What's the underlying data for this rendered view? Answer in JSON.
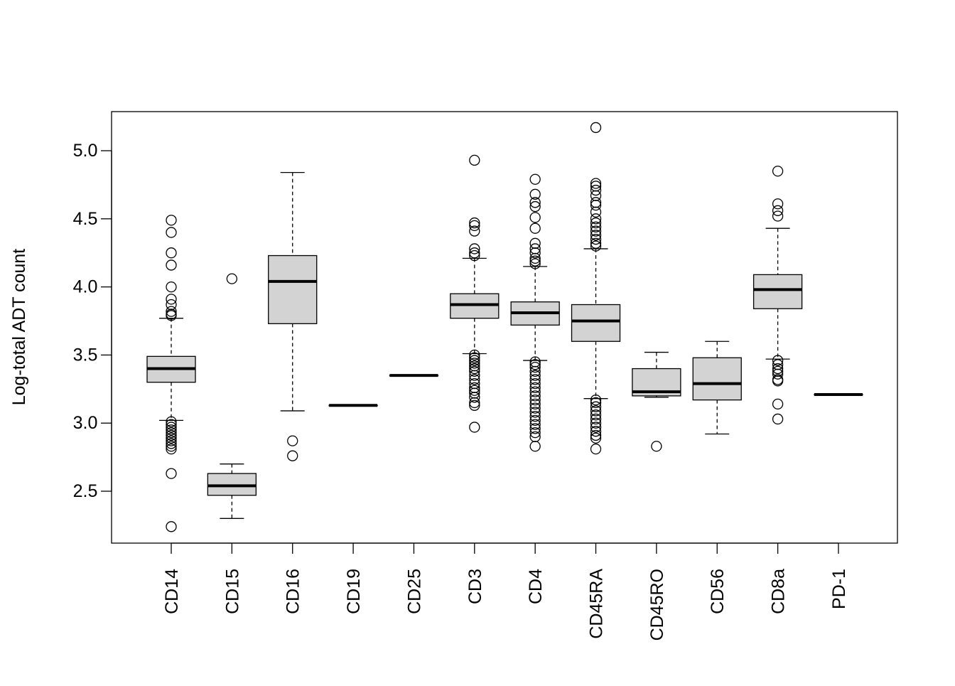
{
  "chart_data": {
    "type": "boxplot",
    "title": "",
    "xlabel": "",
    "ylabel": "Log-total ADT count",
    "ylim": [
      2.12,
      5.29
    ],
    "yticks": [
      "2.5",
      "3.0",
      "3.5",
      "4.0",
      "4.5",
      "5.0"
    ],
    "box_fill": "#d3d3d3",
    "categories": [
      "CD14",
      "CD15",
      "CD16",
      "CD19",
      "CD25",
      "CD3",
      "CD4",
      "CD45RA",
      "CD45RO",
      "CD56",
      "CD8a",
      "PD-1"
    ],
    "boxes": [
      {
        "lower": 3.02,
        "q1": 3.3,
        "median": 3.4,
        "q3": 3.49,
        "upper": 3.77,
        "outliers": [
          4.49,
          4.4,
          4.25,
          4.16,
          4.0,
          3.91,
          3.87,
          3.82,
          3.8,
          3.79,
          3.01,
          2.99,
          2.97,
          2.95,
          2.93,
          2.91,
          2.89,
          2.87,
          2.85,
          2.83,
          2.81,
          2.63,
          2.24
        ]
      },
      {
        "lower": 2.3,
        "q1": 2.47,
        "median": 2.54,
        "q3": 2.63,
        "upper": 2.7,
        "outliers": [
          4.06
        ]
      },
      {
        "lower": 3.09,
        "q1": 3.73,
        "median": 4.04,
        "q3": 4.23,
        "upper": 4.84,
        "outliers": [
          2.87,
          2.76
        ]
      },
      {
        "lower": 3.13,
        "q1": 3.13,
        "median": 3.13,
        "q3": 3.13,
        "upper": 3.13,
        "outliers": []
      },
      {
        "lower": 3.35,
        "q1": 3.35,
        "median": 3.35,
        "q3": 3.35,
        "upper": 3.35,
        "outliers": []
      },
      {
        "lower": 3.51,
        "q1": 3.77,
        "median": 3.87,
        "q3": 3.95,
        "upper": 4.21,
        "outliers": [
          4.93,
          4.47,
          4.45,
          4.41,
          4.28,
          4.25,
          4.23,
          3.5,
          3.48,
          3.46,
          3.44,
          3.42,
          3.4,
          3.38,
          3.35,
          3.32,
          3.29,
          3.26,
          3.24,
          3.22,
          3.19,
          3.15,
          3.13,
          2.97
        ]
      },
      {
        "lower": 3.46,
        "q1": 3.72,
        "median": 3.81,
        "q3": 3.89,
        "upper": 4.15,
        "outliers": [
          4.79,
          4.68,
          4.62,
          4.59,
          4.51,
          4.43,
          4.32,
          4.28,
          4.25,
          4.21,
          4.19,
          4.17,
          3.45,
          3.43,
          3.41,
          3.38,
          3.35,
          3.32,
          3.29,
          3.26,
          3.23,
          3.2,
          3.17,
          3.14,
          3.11,
          3.08,
          3.05,
          3.02,
          2.99,
          2.96,
          2.93,
          2.9,
          2.83
        ]
      },
      {
        "lower": 3.18,
        "q1": 3.6,
        "median": 3.75,
        "q3": 3.87,
        "upper": 4.28,
        "outliers": [
          5.17,
          4.76,
          4.74,
          4.71,
          4.67,
          4.62,
          4.6,
          4.55,
          4.5,
          4.47,
          4.44,
          4.41,
          4.38,
          4.35,
          4.32,
          4.3,
          3.17,
          3.15,
          3.12,
          3.09,
          3.06,
          3.03,
          3.0,
          2.97,
          2.94,
          2.91,
          2.89,
          2.81
        ]
      },
      {
        "lower": 3.19,
        "q1": 3.2,
        "median": 3.23,
        "q3": 3.4,
        "upper": 3.52,
        "outliers": [
          2.83
        ]
      },
      {
        "lower": 2.92,
        "q1": 3.17,
        "median": 3.29,
        "q3": 3.48,
        "upper": 3.6,
        "outliers": []
      },
      {
        "lower": 3.47,
        "q1": 3.84,
        "median": 3.98,
        "q3": 4.09,
        "upper": 4.43,
        "outliers": [
          4.85,
          4.61,
          4.56,
          4.52,
          3.46,
          3.43,
          3.4,
          3.38,
          3.36,
          3.32,
          3.31,
          3.14,
          3.03
        ]
      },
      {
        "lower": 3.21,
        "q1": 3.21,
        "median": 3.21,
        "q3": 3.21,
        "upper": 3.21,
        "outliers": []
      }
    ]
  }
}
